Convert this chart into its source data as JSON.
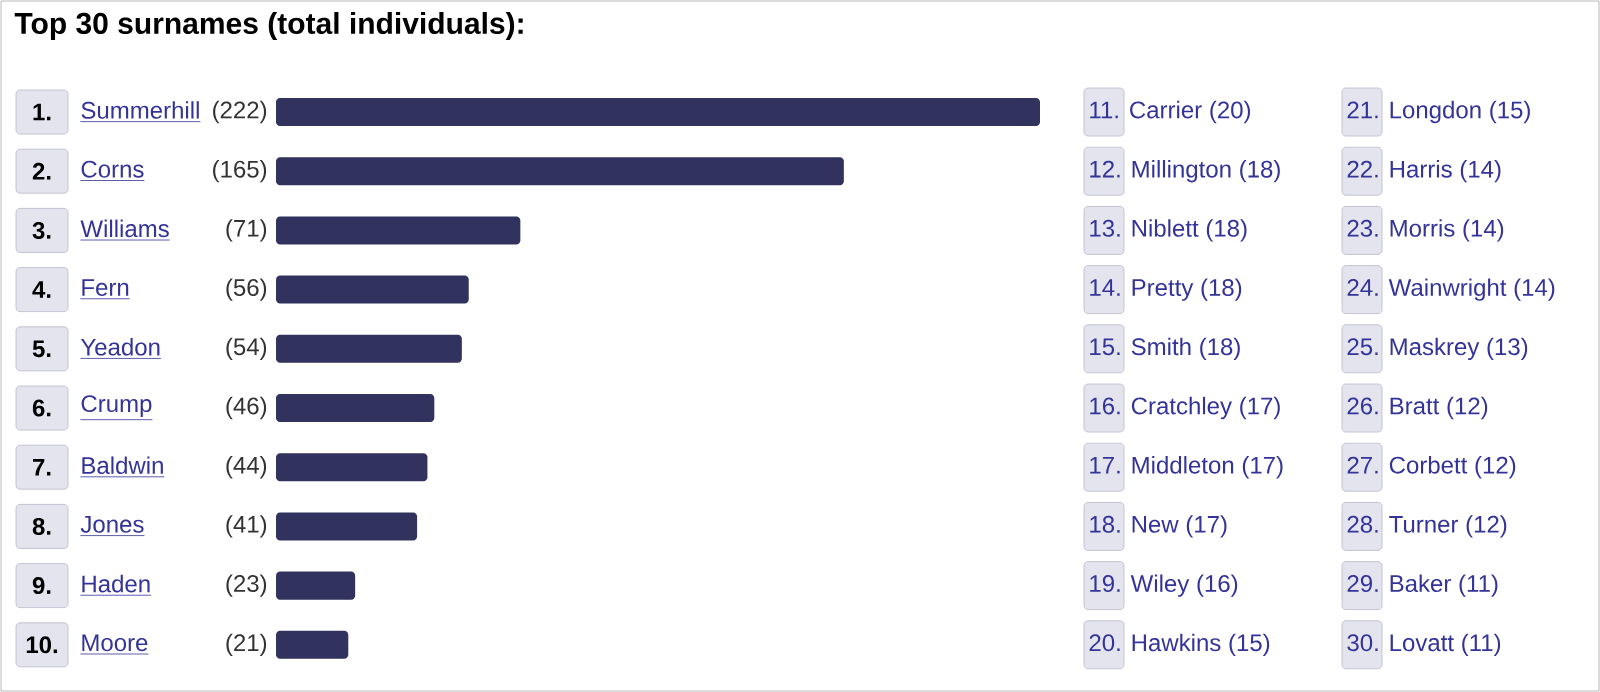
{
  "chart_data": [
    {
      "type": "bar",
      "orientation": "horizontal",
      "title": "Top 30 surnames (total individuals):",
      "color": "#32325e",
      "categories": [
        "Summerhill",
        "Corns",
        "Williams",
        "Fern",
        "Yeadon",
        "Crump",
        "Baldwin",
        "Jones",
        "Haden",
        "Moore"
      ],
      "value_labels": [
        "(222)",
        "(165)",
        "(71)",
        "(56)",
        "(54)",
        "(46)",
        "(44)",
        "(41)",
        "(23)",
        "(21)"
      ],
      "values": [
        222,
        165,
        71,
        56,
        54,
        46,
        44,
        41,
        23,
        21
      ],
      "annotations": [
        "1.",
        "2.",
        "3.",
        "4.",
        "5.",
        "6.",
        "7.",
        "8.",
        "9.",
        "10."
      ]
    },
    {
      "type": "other",
      "annotations": [
        "11. Carrier (20)",
        "12. Millington (18)",
        "13. Niblett (18)",
        "14. Pretty (18)",
        "15. Smith (18)",
        "16. Cratchley (17)",
        "17. Middleton (17)",
        "18. New (17)",
        "19. Wiley (16)",
        "20. Hawkins (15)",
        "21. Longdon (15)",
        "22. Harris (14)",
        "23. Morris (14)",
        "24. Wainwright (14)",
        "25. Maskrey (13)",
        "26. Bratt (12)",
        "27. Corbett (12)",
        "28. Turner (12)",
        "29. Baker (11)",
        "30. Lovatt (11)"
      ]
    }
  ]
}
